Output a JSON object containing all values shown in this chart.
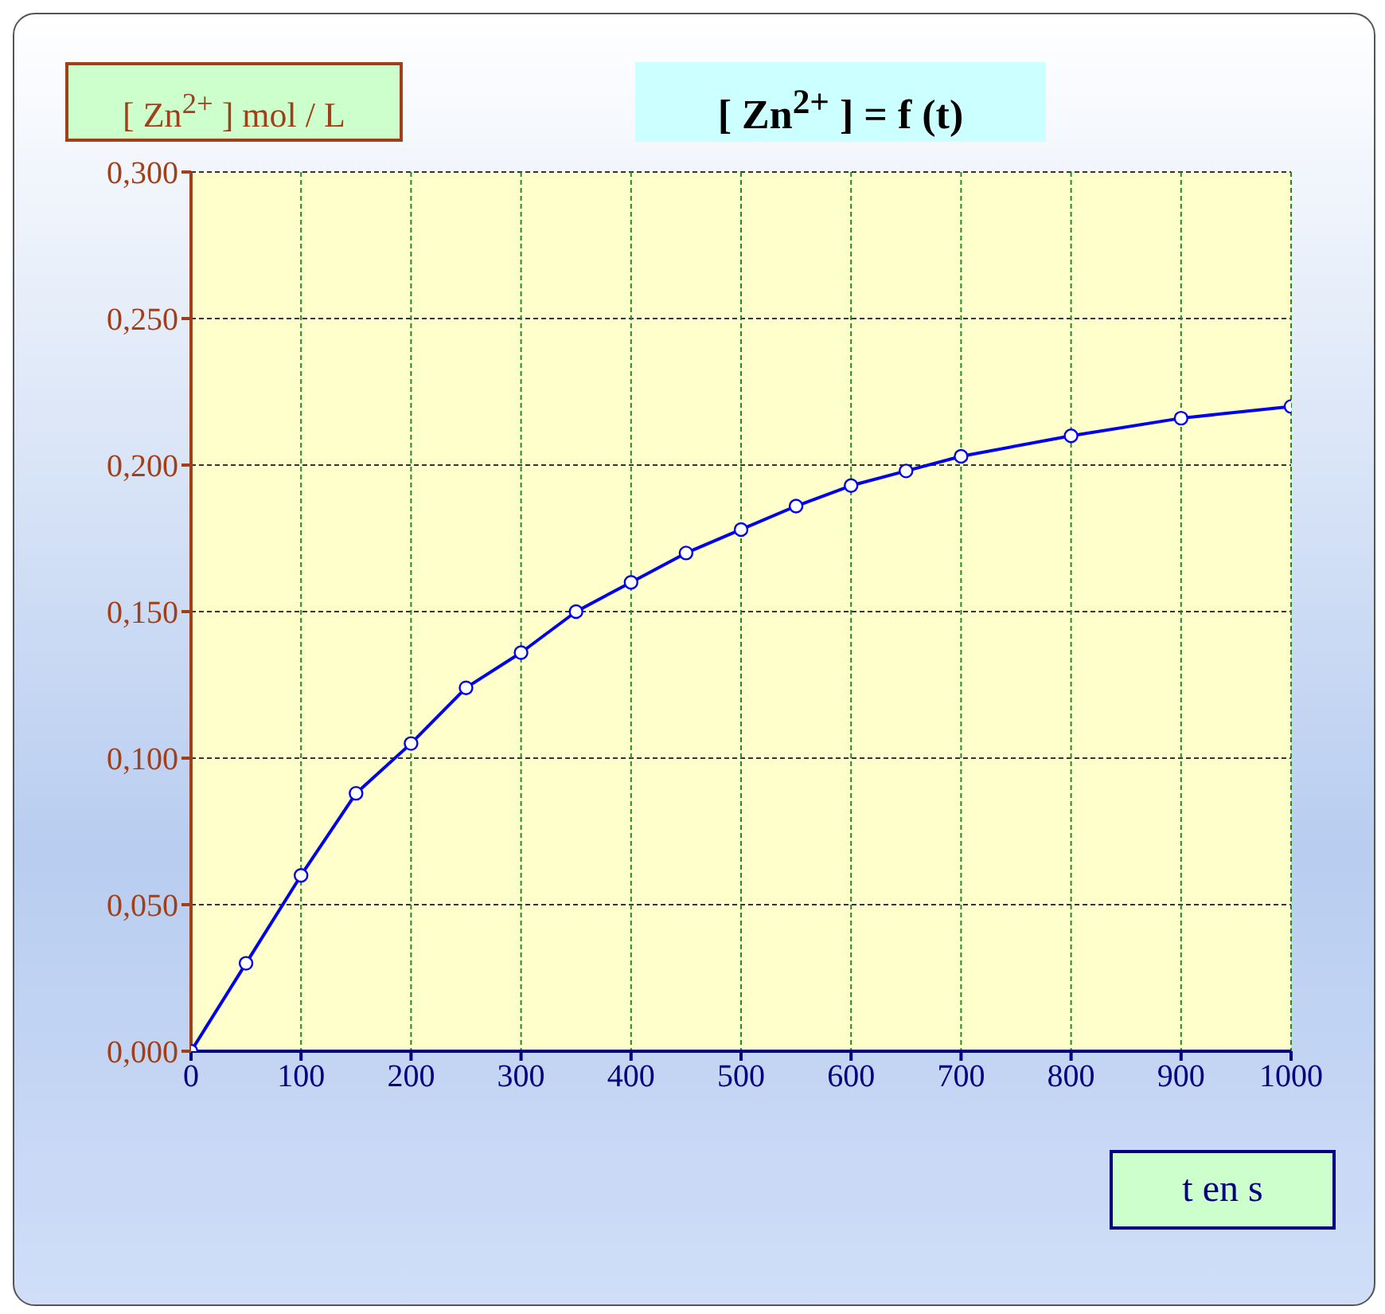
{
  "chart_data": {
    "type": "line",
    "title": "[ Zn$^{2+}$ ] = f (t)",
    "ylabel": "[ Zn$^{2+}$ ] mol / L",
    "xlabel": "t en s",
    "x": [
      0,
      50,
      100,
      150,
      200,
      250,
      300,
      350,
      400,
      450,
      500,
      550,
      600,
      650,
      700,
      800,
      900,
      1000
    ],
    "series": [
      {
        "color": "#0000ee",
        "values": [
          0,
          0.03,
          0.06,
          0.088,
          0.105,
          0.124,
          0.136,
          0.15,
          0.16,
          0.17,
          0.178,
          0.186,
          0.193,
          0.198,
          0.203,
          0.21,
          0.216,
          0.22
        ]
      }
    ],
    "xlim": [
      0,
      1000
    ],
    "xticks": [
      0,
      100,
      200,
      300,
      400,
      500,
      600,
      700,
      800,
      900,
      1000
    ],
    "ylim": [
      0,
      0.3
    ],
    "yticks": [
      {
        "value": 0,
        "label": "0,000"
      },
      {
        "value": 0.05,
        "label": "0,050"
      },
      {
        "value": 0.1,
        "label": "0,100"
      },
      {
        "value": 0.15,
        "label": "0,150"
      },
      {
        "value": 0.2,
        "label": "0,200"
      },
      {
        "value": 0.25,
        "label": "0,250"
      },
      {
        "value": 0.3,
        "label": "0,300"
      }
    ],
    "grid": true,
    "marker": "circle",
    "line_style": "solid"
  }
}
